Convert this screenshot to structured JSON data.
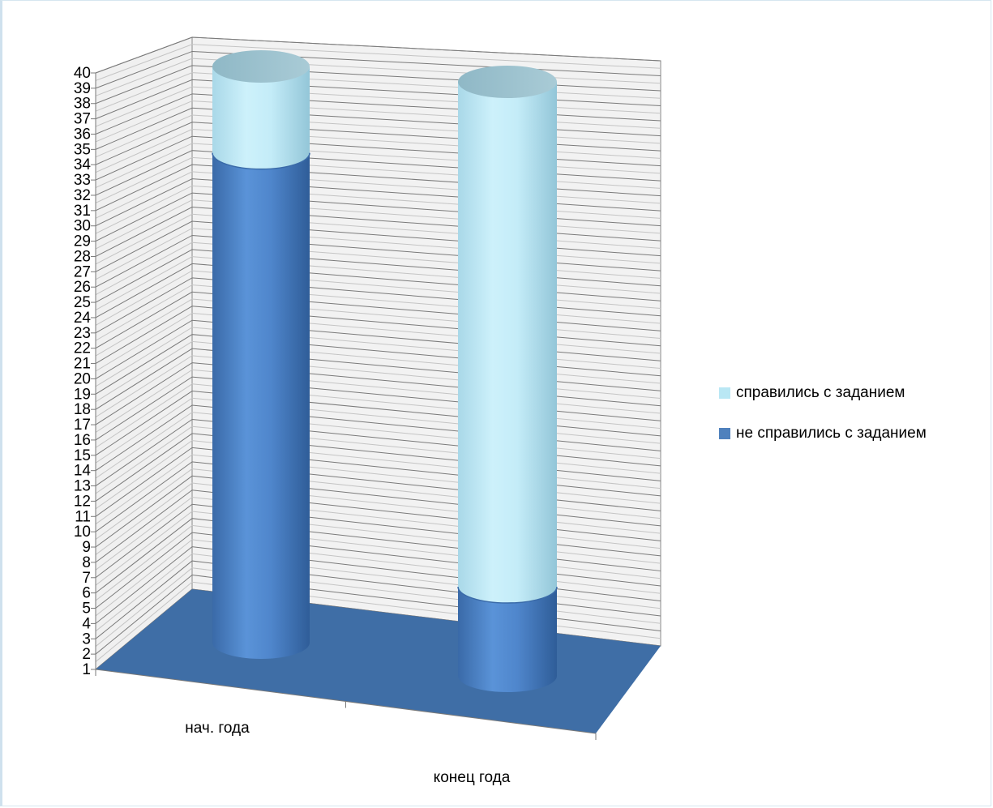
{
  "chart_data": {
    "type": "bar",
    "categories": [
      "нач. года",
      "конец года"
    ],
    "series": [
      {
        "name": "не справились с заданием",
        "values": [
          34,
          6
        ]
      },
      {
        "name": "справились с заданием",
        "values": [
          6,
          34
        ]
      }
    ],
    "ylim": [
      1,
      40
    ],
    "y_ticks": [
      1,
      2,
      3,
      4,
      5,
      6,
      7,
      8,
      9,
      10,
      11,
      12,
      13,
      14,
      15,
      16,
      17,
      18,
      19,
      20,
      21,
      22,
      23,
      24,
      25,
      26,
      27,
      28,
      29,
      30,
      31,
      32,
      33,
      34,
      35,
      36,
      37,
      38,
      39,
      40
    ],
    "grid": true,
    "legend_position": "right",
    "colors": {
      "не справились с заданием": "#4f81bd",
      "справились с заданием": "#bfe9f5",
      "floor": "#3f6ea6",
      "wall_grid": "#7a7a7a"
    }
  }
}
